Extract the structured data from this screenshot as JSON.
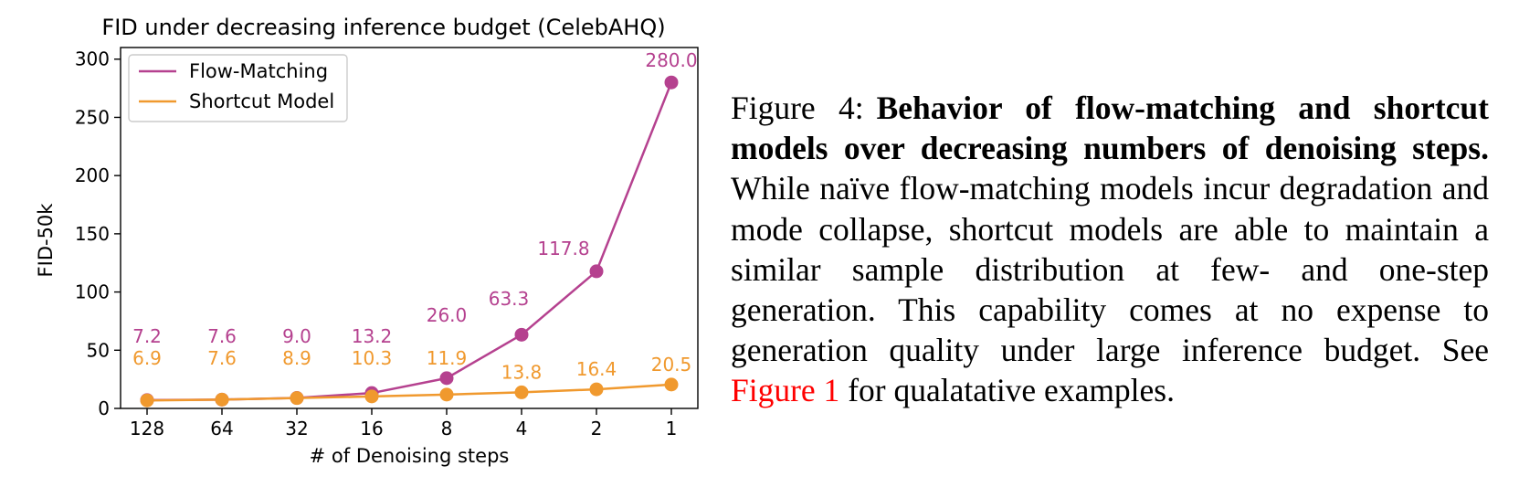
{
  "chart_data": {
    "type": "line",
    "title": "FID under decreasing inference budget (CelebAHQ)",
    "xlabel": "# of Denoising steps",
    "ylabel": "FID-50k",
    "categories": [
      "128",
      "64",
      "32",
      "16",
      "8",
      "4",
      "2",
      "1"
    ],
    "series": [
      {
        "name": "Flow-Matching",
        "color": "#b5418f",
        "values": [
          7.2,
          7.6,
          9.0,
          13.2,
          26.0,
          63.3,
          117.8,
          280.0
        ],
        "labels": [
          "7.2",
          "7.6",
          "9.0",
          "13.2",
          "26.0",
          "63.3",
          "117.8",
          "280.0"
        ]
      },
      {
        "name": "Shortcut Model",
        "color": "#f0992e",
        "values": [
          6.9,
          7.6,
          8.9,
          10.3,
          11.9,
          13.8,
          16.4,
          20.5
        ],
        "labels": [
          "6.9",
          "7.6",
          "8.9",
          "10.3",
          "11.9",
          "13.8",
          "16.4",
          "20.5"
        ]
      }
    ],
    "ylim": [
      0,
      310
    ],
    "yticks": [
      "0",
      "50",
      "100",
      "150",
      "200",
      "250",
      "300"
    ],
    "grid": false,
    "legend": "top-left"
  },
  "caption": {
    "label": "Figure 4:",
    "bold": "Behavior of flow-matching and shortcut models over decreasing numbers of denoising steps.",
    "body": " While naïve flow-matching models incur degradation and mode collapse, shortcut models are able to maintain a similar sample distribution at few- and one-step generation.  This capability comes at no expense to generation quality under large inference budget. See ",
    "ref": "Figure 1",
    "tail": " for qualatative examples."
  }
}
